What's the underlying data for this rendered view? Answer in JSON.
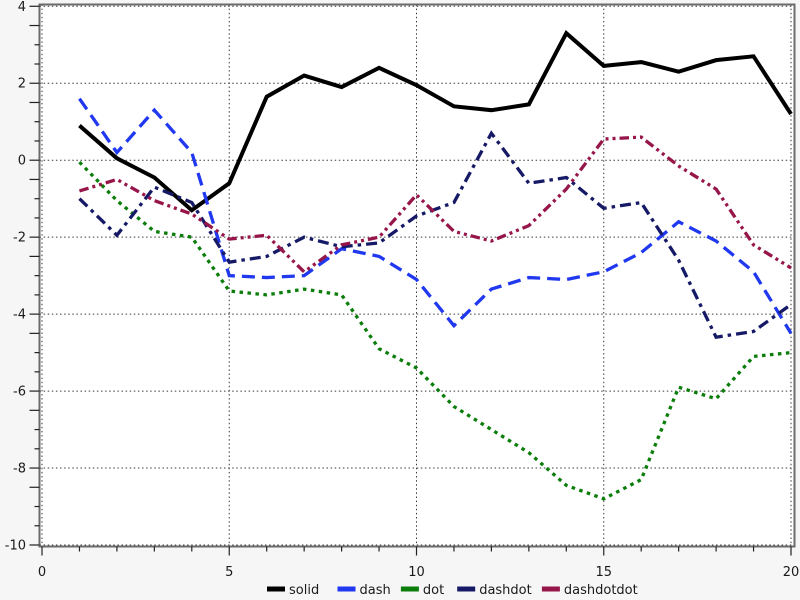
{
  "figure": {
    "background": "#f6f6f6",
    "plot_background": "#ffffff",
    "frame_color": "#6b6b6b",
    "grid_color": "#3a3a3a",
    "tick_label_color": "#1a1a1a",
    "tick_font_px": 13
  },
  "chart_data": {
    "type": "line",
    "title": "",
    "xlabel": "",
    "ylabel": "",
    "xlim": [
      0,
      20
    ],
    "ylim": [
      -10,
      4
    ],
    "x_major_ticks": [
      0,
      5,
      10,
      15,
      20
    ],
    "y_major_ticks": [
      4,
      2,
      0,
      -2,
      -4,
      -6,
      -8,
      -10
    ],
    "x_minor_step": 1,
    "y_minor_step": 0.5,
    "grid": "dotted-at-major-ticks",
    "legend_position": "bottom-center",
    "x": [
      1,
      2,
      3,
      4,
      5,
      6,
      7,
      8,
      9,
      10,
      11,
      12,
      13,
      14,
      15,
      16,
      17,
      18,
      19,
      20
    ],
    "series": [
      {
        "name": "solid",
        "color": "#000000",
        "dash": "solid",
        "values": [
          0.9,
          0.05,
          -0.45,
          -1.3,
          -0.6,
          1.65,
          2.2,
          1.9,
          2.4,
          1.95,
          1.4,
          1.3,
          1.45,
          3.3,
          2.45,
          2.55,
          2.3,
          2.6,
          2.7,
          1.2
        ]
      },
      {
        "name": "dash",
        "color": "#2038f0",
        "dash": "dash",
        "values": [
          1.6,
          0.2,
          1.3,
          0.2,
          -3.0,
          -3.05,
          -3.0,
          -2.3,
          -2.5,
          -3.1,
          -4.3,
          -3.35,
          -3.05,
          -3.1,
          -2.9,
          -2.4,
          -1.6,
          -2.1,
          -2.9,
          -4.5
        ]
      },
      {
        "name": "dot",
        "color": "#0a7d0a",
        "dash": "dot",
        "values": [
          -0.05,
          -1.05,
          -1.85,
          -2.0,
          -3.4,
          -3.5,
          -3.35,
          -3.5,
          -4.9,
          -5.4,
          -6.4,
          -7.0,
          -7.6,
          -8.45,
          -8.8,
          -8.3,
          -5.9,
          -6.2,
          -5.1,
          -5.0
        ]
      },
      {
        "name": "dashdot",
        "color": "#161a66",
        "dash": "dashdot",
        "values": [
          -1.0,
          -1.95,
          -0.7,
          -1.1,
          -2.65,
          -2.5,
          -2.0,
          -2.25,
          -2.15,
          -1.45,
          -1.1,
          0.7,
          -0.6,
          -0.45,
          -1.25,
          -1.1,
          -2.6,
          -4.6,
          -4.45,
          -3.75
        ]
      },
      {
        "name": "dashdotdot",
        "color": "#97164a",
        "dash": "dashdotdot",
        "values": [
          -0.8,
          -0.5,
          -1.05,
          -1.4,
          -2.05,
          -1.95,
          -2.9,
          -2.2,
          -2.0,
          -0.9,
          -1.85,
          -2.1,
          -1.7,
          -0.75,
          0.55,
          0.6,
          -0.15,
          -0.75,
          -2.2,
          -2.8
        ]
      }
    ]
  }
}
